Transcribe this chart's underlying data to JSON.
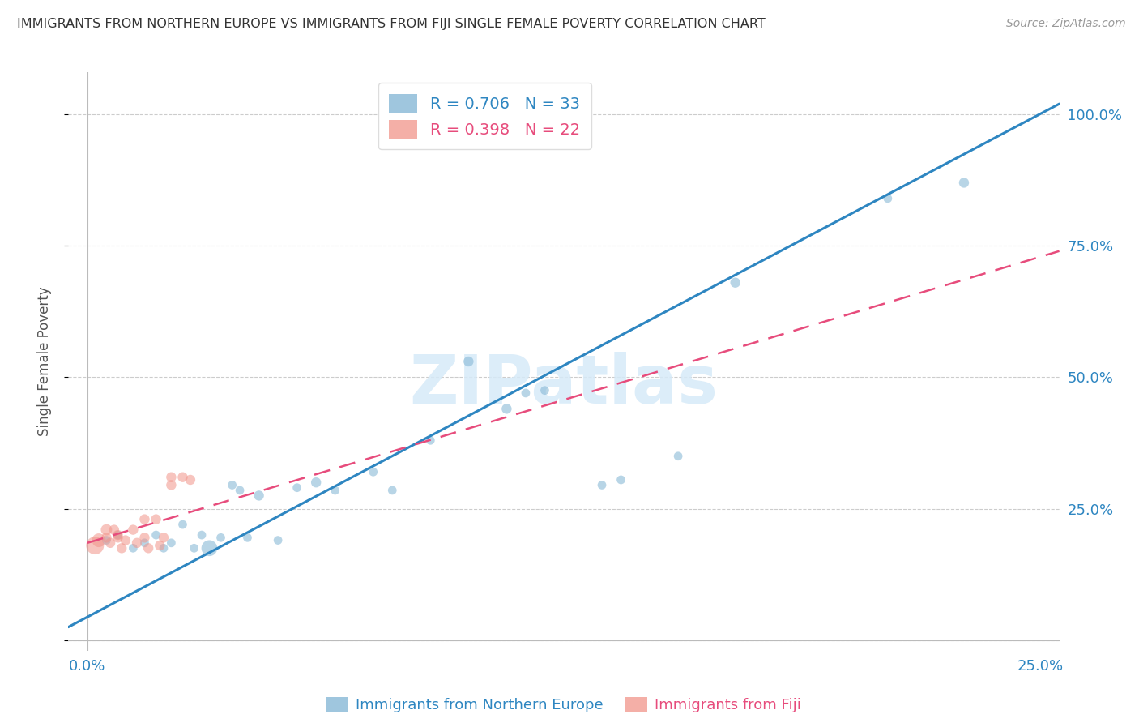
{
  "title": "IMMIGRANTS FROM NORTHERN EUROPE VS IMMIGRANTS FROM FIJI SINGLE FEMALE POVERTY CORRELATION CHART",
  "source": "Source: ZipAtlas.com",
  "xlabel_blue": "Immigrants from Northern Europe",
  "xlabel_pink": "Immigrants from Fiji",
  "ylabel": "Single Female Poverty",
  "watermark": "ZIPatlas",
  "blue_R": 0.706,
  "blue_N": 33,
  "pink_R": 0.398,
  "pink_N": 22,
  "blue_color": "#7FB3D3",
  "pink_color": "#F1948A",
  "blue_line_color": "#2E86C1",
  "pink_line_color": "#E74C7C",
  "title_color": "#333333",
  "axis_label_color": "#2E86C1",
  "right_axis_color": "#2E86C1",
  "background_color": "#FFFFFF",
  "xlim": [
    -0.005,
    0.255
  ],
  "ylim": [
    -0.02,
    1.08
  ],
  "x_ticks": [
    0.0,
    0.25
  ],
  "x_tick_labels": [
    "0.0%",
    "25.0%"
  ],
  "y_ticks": [
    0.0,
    0.25,
    0.5,
    0.75,
    1.0
  ],
  "y_tick_labels": [
    "",
    "25.0%",
    "50.0%",
    "75.0%",
    "100.0%"
  ],
  "blue_scatter_x": [
    0.005,
    0.008,
    0.012,
    0.015,
    0.018,
    0.02,
    0.022,
    0.025,
    0.028,
    0.03,
    0.032,
    0.035,
    0.038,
    0.04,
    0.042,
    0.045,
    0.05,
    0.055,
    0.06,
    0.065,
    0.075,
    0.08,
    0.09,
    0.1,
    0.11,
    0.115,
    0.12,
    0.135,
    0.14,
    0.155,
    0.17,
    0.21,
    0.23
  ],
  "blue_scatter_y": [
    0.19,
    0.2,
    0.175,
    0.185,
    0.2,
    0.175,
    0.185,
    0.22,
    0.175,
    0.2,
    0.175,
    0.195,
    0.295,
    0.285,
    0.195,
    0.275,
    0.19,
    0.29,
    0.3,
    0.285,
    0.32,
    0.285,
    0.38,
    0.53,
    0.44,
    0.47,
    0.475,
    0.295,
    0.305,
    0.35,
    0.68,
    0.84,
    0.87
  ],
  "blue_scatter_size": [
    60,
    60,
    60,
    60,
    60,
    60,
    60,
    60,
    60,
    60,
    200,
    60,
    60,
    60,
    60,
    80,
    60,
    60,
    80,
    60,
    60,
    60,
    60,
    80,
    80,
    60,
    60,
    60,
    60,
    60,
    80,
    60,
    80
  ],
  "pink_scatter_x": [
    0.002,
    0.003,
    0.005,
    0.005,
    0.006,
    0.007,
    0.008,
    0.008,
    0.009,
    0.01,
    0.012,
    0.013,
    0.015,
    0.015,
    0.016,
    0.018,
    0.019,
    0.02,
    0.022,
    0.022,
    0.025,
    0.027
  ],
  "pink_scatter_y": [
    0.18,
    0.19,
    0.21,
    0.195,
    0.185,
    0.21,
    0.2,
    0.195,
    0.175,
    0.19,
    0.21,
    0.185,
    0.23,
    0.195,
    0.175,
    0.23,
    0.18,
    0.195,
    0.295,
    0.31,
    0.31,
    0.305
  ],
  "pink_scatter_size": [
    250,
    150,
    100,
    80,
    80,
    80,
    80,
    80,
    80,
    80,
    80,
    80,
    80,
    80,
    80,
    80,
    80,
    80,
    80,
    80,
    80,
    80
  ],
  "blue_line_x": [
    -0.005,
    0.255
  ],
  "blue_line_y": [
    0.025,
    1.02
  ],
  "pink_line_x": [
    0.0,
    0.255
  ],
  "pink_line_y": [
    0.185,
    0.74
  ]
}
